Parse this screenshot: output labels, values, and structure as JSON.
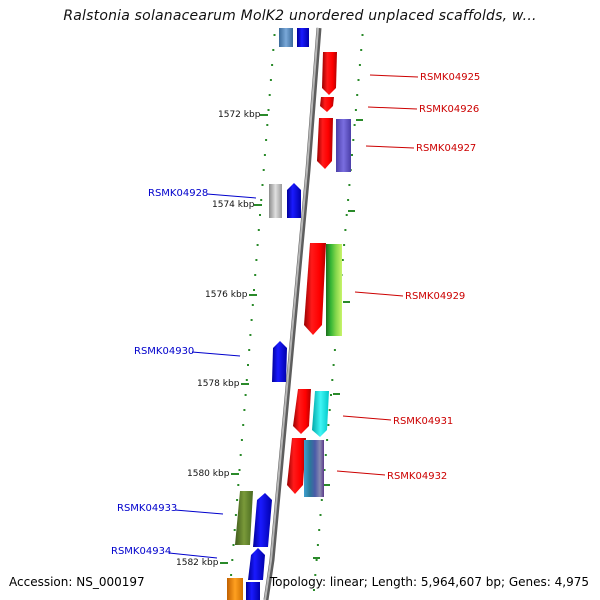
{
  "title": "Ralstonia solanacearum MolK2 unordered unplaced scaffolds, w...",
  "footer": {
    "accession": "Accession: NS_000197",
    "summary": "Topology: linear; Length: 5,964,607 bp; Genes: 4,975"
  },
  "colors": {
    "backbone": "#9a9a9a",
    "tick": "#2a8a2a",
    "forward_label": "#cc0000",
    "reverse_label": "#0000cc"
  },
  "scale_ticks": [
    "1572 kbp",
    "1574 kbp",
    "1576 kbp",
    "1578 kbp",
    "1580 kbp",
    "1582 kbp"
  ],
  "genes": {
    "forward": [
      {
        "label": "RSMK04925",
        "color": "#ff0000"
      },
      {
        "label": "RSMK04926",
        "color": "#ff0000"
      },
      {
        "label": "RSMK04927",
        "color": "#ff0000"
      },
      {
        "label": "RSMK04929",
        "color": "#ff0000"
      },
      {
        "label": "RSMK04931",
        "color": "#ff0000"
      },
      {
        "label": "RSMK04932",
        "color": "#ff0000"
      }
    ],
    "reverse": [
      {
        "label": "RSMK04928",
        "color": "#0000ee"
      },
      {
        "label": "RSMK04930",
        "color": "#0000ee"
      },
      {
        "label": "RSMK04933",
        "color": "#0000ee"
      },
      {
        "label": "RSMK04934",
        "color": "#0000ee"
      }
    ]
  }
}
